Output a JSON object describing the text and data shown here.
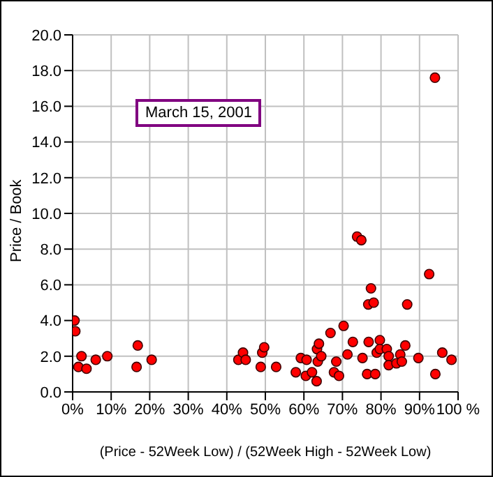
{
  "chart_data": {
    "type": "scatter",
    "xlabel": "(Price - 52Week Low) / (52Week High - 52Week Low)",
    "ylabel": "Price / Book",
    "annotations": [
      "March 15, 2001"
    ],
    "xlim": [
      0,
      100
    ],
    "xticks": [
      {
        "value": 0,
        "label": "0%"
      },
      {
        "value": 10,
        "label": "10%"
      },
      {
        "value": 20,
        "label": "20%"
      },
      {
        "value": 30,
        "label": "30%"
      },
      {
        "value": 40,
        "label": "40%"
      },
      {
        "value": 50,
        "label": "50%"
      },
      {
        "value": 60,
        "label": "60%"
      },
      {
        "value": 70,
        "label": "70%"
      },
      {
        "value": 80,
        "label": "80%"
      },
      {
        "value": 90,
        "label": "90%"
      },
      {
        "value": 100,
        "label": "100 %"
      }
    ],
    "ylim": [
      0,
      20
    ],
    "yticks": [
      {
        "value": 0,
        "label": "0.0"
      },
      {
        "value": 2,
        "label": "2.0"
      },
      {
        "value": 4,
        "label": "4.0"
      },
      {
        "value": 6,
        "label": "6.0"
      },
      {
        "value": 8,
        "label": "8.0"
      },
      {
        "value": 10,
        "label": "10.0"
      },
      {
        "value": 12,
        "label": "12.0"
      },
      {
        "value": 14,
        "label": "14.0"
      },
      {
        "value": 16,
        "label": "16.0"
      },
      {
        "value": 18,
        "label": "18.0"
      },
      {
        "value": 20,
        "label": "20.0"
      }
    ],
    "grid": true,
    "marker": "circle",
    "series": [
      {
        "color": "#ff0000",
        "x": [
          0.5,
          0.7,
          2.3,
          1.5,
          3.6,
          6,
          9,
          16.9,
          16.6,
          20.5,
          43,
          44.2,
          44.9,
          49.2,
          49.7,
          48.8,
          52.8,
          57.9,
          59.2,
          60.7,
          60.5,
          62.1,
          63.3,
          63.6,
          63.4,
          63.9,
          66.9,
          70.3,
          72.7,
          71.3,
          68.4,
          67.8,
          69.1,
          64.5,
          75.2,
          76.4,
          78.5,
          76.8,
          78.9,
          79.7,
          79.7,
          81.5,
          82,
          82,
          84,
          85,
          85.4,
          86.3,
          89.7,
          94.1,
          95.9,
          98.3,
          76.7,
          78.1,
          77.4,
          86.8,
          92.5,
          73.8,
          74.9,
          94
        ],
        "values": [
          4.0,
          3.4,
          2.0,
          1.4,
          1.3,
          1.8,
          2.0,
          2.6,
          1.4,
          1.8,
          1.8,
          2.2,
          1.8,
          2.2,
          2.5,
          1.4,
          1.4,
          1.1,
          1.9,
          1.8,
          0.9,
          1.1,
          0.6,
          1.7,
          2.4,
          2.7,
          3.3,
          3.7,
          2.8,
          2.1,
          1.7,
          1.1,
          0.9,
          2.0,
          1.9,
          1.0,
          1.0,
          2.8,
          2.2,
          2.9,
          2.4,
          2.4,
          2.0,
          1.5,
          1.6,
          2.1,
          1.7,
          2.6,
          1.9,
          1.0,
          2.2,
          1.8,
          4.9,
          5.0,
          5.8,
          4.9,
          6.6,
          8.7,
          8.5,
          17.6
        ]
      }
    ]
  }
}
